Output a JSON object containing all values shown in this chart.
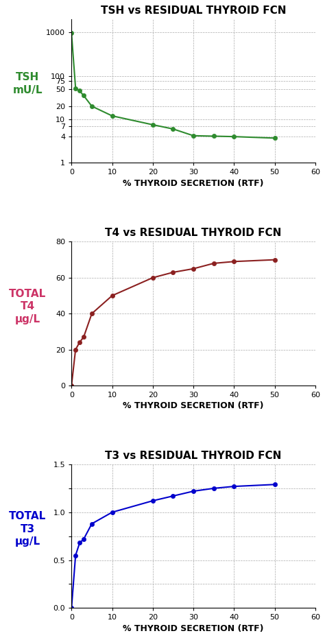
{
  "tsh": {
    "title": "TSH vs RESIDUAL THYROID FCN",
    "xlabel": "% THYROID SECRETION (RTF)",
    "ylabel_lines": [
      "TSH",
      "mU/L"
    ],
    "ylabel_color": "#2e8b2e",
    "color": "#2e8b2e",
    "x": [
      0,
      1,
      2,
      3,
      5,
      10,
      20,
      25,
      30,
      35,
      40,
      50
    ],
    "y": [
      950,
      52,
      45,
      35,
      20,
      12,
      7.5,
      6.0,
      4.2,
      4.1,
      4.0,
      3.7
    ],
    "xlim": [
      0,
      60
    ],
    "xticks": [
      0,
      10,
      20,
      30,
      40,
      50,
      60
    ],
    "ylim_log": [
      1,
      2000
    ],
    "yticks": [
      1,
      4,
      7,
      10,
      20,
      50,
      75,
      100,
      1000
    ],
    "ytick_labels": [
      "1",
      "4",
      "7",
      "10",
      "20",
      "50",
      "75",
      "100",
      "1000"
    ]
  },
  "t4": {
    "title": "T4 vs RESIDUAL THYROID FCN",
    "xlabel": "% THYROID SECRETION (RTF)",
    "ylabel_lines": [
      "TOTAL",
      "T4",
      "μg/L"
    ],
    "ylabel_color": "#cc3366",
    "color": "#8b2020",
    "x": [
      0,
      1,
      2,
      3,
      5,
      10,
      20,
      25,
      30,
      35,
      40,
      50
    ],
    "y": [
      0,
      20,
      24,
      27,
      40,
      50,
      60,
      63,
      65,
      68,
      69,
      70
    ],
    "xlim": [
      0,
      60
    ],
    "xticks": [
      0,
      10,
      20,
      30,
      40,
      50,
      60
    ],
    "ylim": [
      0,
      80
    ],
    "yticks": [
      0,
      20,
      40,
      60,
      80
    ]
  },
  "t3": {
    "title": "T3 vs RESIDUAL THYROID FCN",
    "xlabel": "% THYROID SECRETION (RTF)",
    "ylabel_lines": [
      "TOTAL",
      "T3",
      "μg/L"
    ],
    "ylabel_color": "#0000cc",
    "color": "#0000cc",
    "x": [
      0,
      1,
      2,
      3,
      5,
      10,
      20,
      25,
      30,
      35,
      40,
      50
    ],
    "y": [
      0.0,
      0.55,
      0.68,
      0.72,
      0.88,
      1.0,
      1.12,
      1.17,
      1.22,
      1.25,
      1.27,
      1.29
    ],
    "xlim": [
      0,
      60
    ],
    "xticks": [
      0,
      10,
      20,
      30,
      40,
      50,
      60
    ],
    "ylim": [
      0.0,
      1.5
    ],
    "yticks": [
      0.0,
      0.25,
      0.5,
      0.75,
      1.0,
      1.25,
      1.5
    ],
    "ytick_labels": [
      "0.0",
      "",
      "0.5",
      "",
      "1.0",
      "",
      "1.5"
    ]
  },
  "bg_color": "#ffffff",
  "title_fontsize": 11,
  "label_fontsize": 9,
  "tick_fontsize": 8,
  "ylabel_fontsize": 11
}
